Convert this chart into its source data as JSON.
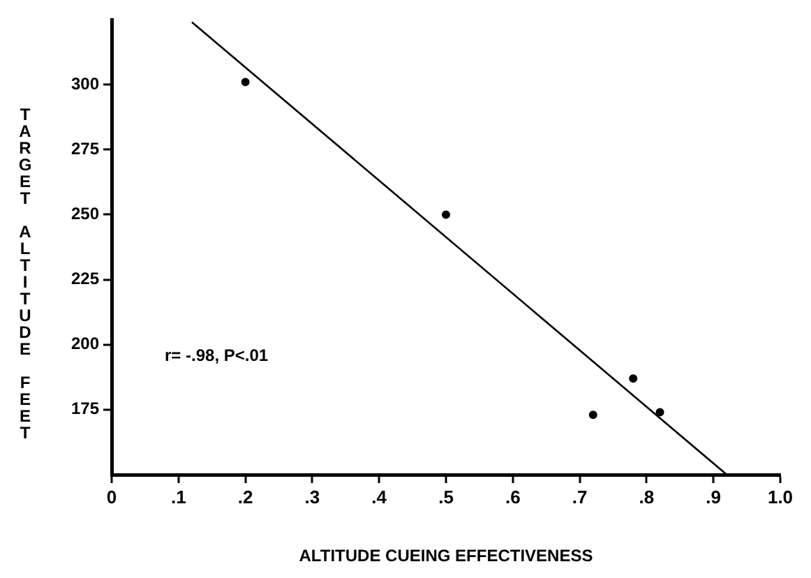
{
  "chart_data": {
    "type": "scatter",
    "xlabel": "ALTITUDE CUEING EFFECTIVENESS",
    "ylabel": "TARGET ALTITUDE FEET",
    "annotations": [
      "r= -.98, P<.01"
    ],
    "series": [
      {
        "color": "#000000",
        "x": [
          0.2,
          0.5,
          0.72,
          0.78,
          0.82
        ],
        "values": [
          301,
          250,
          173,
          187,
          174
        ],
        "marker": "circle"
      },
      {
        "type": "line",
        "color": "#000000",
        "x": [
          0.12,
          0.92
        ],
        "values": [
          324,
          150
        ],
        "marker": "none"
      }
    ],
    "xlim": [
      0,
      1.0
    ],
    "xticks": [
      {
        "value": 0,
        "label": "0"
      },
      {
        "value": 0.1,
        "label": ".1"
      },
      {
        "value": 0.2,
        "label": ".2"
      },
      {
        "value": 0.3,
        "label": ".3"
      },
      {
        "value": 0.4,
        "label": ".4"
      },
      {
        "value": 0.5,
        "label": ".5"
      },
      {
        "value": 0.6,
        "label": ".6"
      },
      {
        "value": 0.7,
        "label": ".7"
      },
      {
        "value": 0.8,
        "label": ".8"
      },
      {
        "value": 0.9,
        "label": ".9"
      },
      {
        "value": 1.0,
        "label": "1.0"
      }
    ],
    "ylim": [
      150,
      325
    ],
    "yticks": [
      175,
      200,
      225,
      250,
      275,
      300
    ],
    "grid": false,
    "legend": false
  }
}
